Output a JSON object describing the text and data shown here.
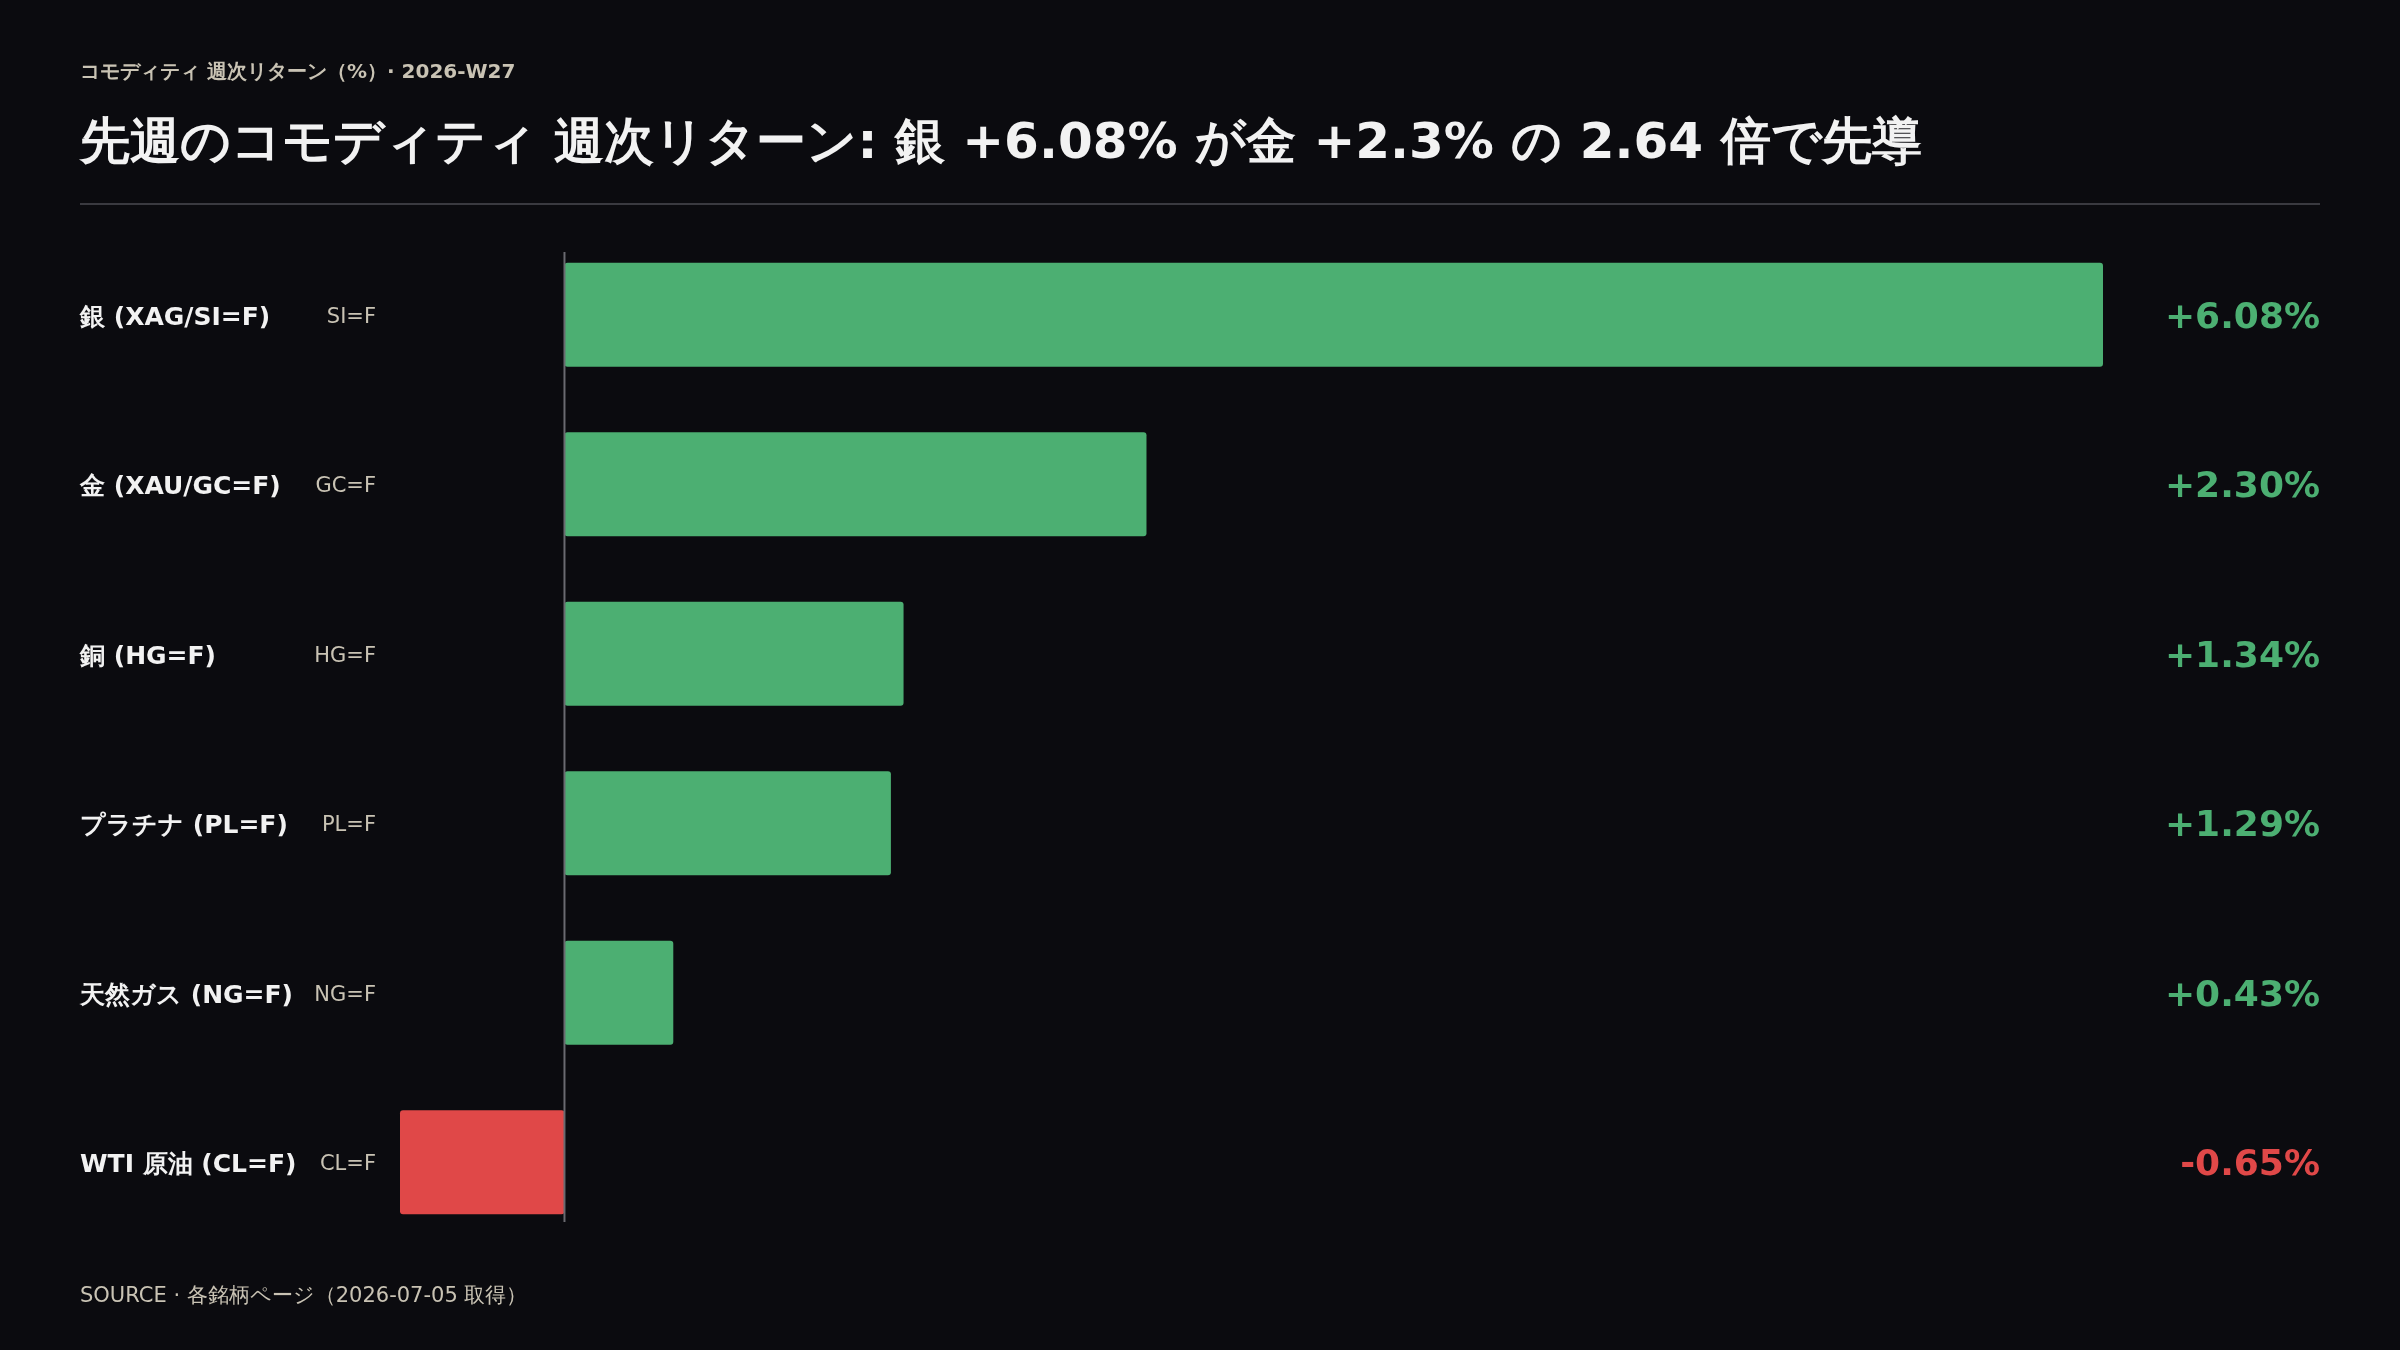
{
  "chart_data": {
    "type": "bar",
    "orientation": "horizontal",
    "subtitle": "コモディティ 週次リターン（%）· 2026-W27",
    "title": "先週のコモディティ 週次リターン: 銀 +6.08% が金 +2.3% の 2.64 倍で先導",
    "categories": [
      "銀 (XAG/SI=F)",
      "金 (XAU/GC=F)",
      "銅 (HG=F)",
      "プラチナ (PL=F)",
      "天然ガス (NG=F)",
      "WTI 原油 (CL=F)"
    ],
    "values": [
      6.08,
      2.3,
      1.34,
      1.29,
      0.43,
      -0.65
    ],
    "colors": [
      "#4caf72",
      "#4caf72",
      "#4caf72",
      "#4caf72",
      "#4caf72",
      "#e04848"
    ],
    "value_labels": [
      "+6.08%",
      "+2.30%",
      "+1.34%",
      "+1.29%",
      "+0.43%",
      "-0.65%"
    ],
    "annotations": [
      "SI=F",
      "GC=F",
      "HG=F",
      "PL=F",
      "NG=F",
      "CL=F",
      "SOURCE · 各銘柄ページ（2026-07-05 取得）"
    ]
  }
}
